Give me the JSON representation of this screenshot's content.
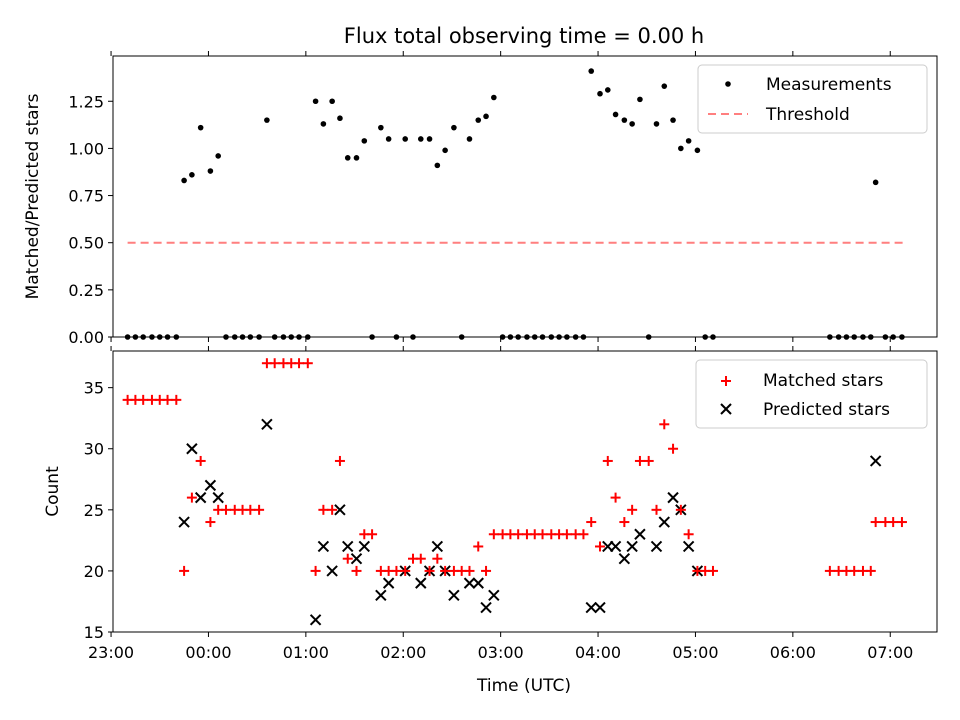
{
  "chart_data": {
    "title": "Flux total observing time = 0.00 h",
    "x_axis": {
      "label": "Time (UTC)",
      "range_hours": [
        -0.98,
        7.48
      ],
      "ticks": [
        {
          "value": -1,
          "label": "23:00"
        },
        {
          "value": 0,
          "label": "00:00"
        },
        {
          "value": 1,
          "label": "01:00"
        },
        {
          "value": 2,
          "label": "02:00"
        },
        {
          "value": 3,
          "label": "03:00"
        },
        {
          "value": 4,
          "label": "04:00"
        },
        {
          "value": 5,
          "label": "05:00"
        },
        {
          "value": 6,
          "label": "06:00"
        },
        {
          "value": 7,
          "label": "07:00"
        }
      ]
    },
    "panels": [
      {
        "type": "scatter",
        "ylabel": "Matched/Predicted stars",
        "ylim": [
          0,
          1.49
        ],
        "yticks": [
          {
            "value": 0,
            "label": "0.00"
          },
          {
            "value": 0.25,
            "label": "0.25"
          },
          {
            "value": 0.5,
            "label": "0.50"
          },
          {
            "value": 0.75,
            "label": "0.75"
          },
          {
            "value": 1.0,
            "label": "1.00"
          },
          {
            "value": 1.25,
            "label": "1.25"
          }
        ],
        "legend_position": "top-right",
        "legend": [
          {
            "label": "Measurements",
            "marker": "dot",
            "color": "#000000"
          },
          {
            "label": "Threshold",
            "marker": "dashed-line",
            "color": "#ff7f7f"
          }
        ],
        "threshold": {
          "value": 0.5,
          "x": [
            -0.83,
            7.13
          ],
          "color": "#ff7f7f"
        },
        "measurements": [
          [
            -0.83,
            0
          ],
          [
            -0.75,
            0
          ],
          [
            -0.67,
            0
          ],
          [
            -0.58,
            0
          ],
          [
            -0.5,
            0
          ],
          [
            -0.42,
            0
          ],
          [
            -0.33,
            0
          ],
          [
            -0.25,
            0.83
          ],
          [
            -0.17,
            0.86
          ],
          [
            -0.08,
            1.11
          ],
          [
            0.02,
            0.88
          ],
          [
            0.1,
            0.96
          ],
          [
            0.18,
            0
          ],
          [
            0.27,
            0
          ],
          [
            0.35,
            0
          ],
          [
            0.43,
            0
          ],
          [
            0.52,
            0
          ],
          [
            0.6,
            1.15
          ],
          [
            0.68,
            0
          ],
          [
            0.77,
            0
          ],
          [
            0.85,
            0
          ],
          [
            0.93,
            0
          ],
          [
            1.02,
            0
          ],
          [
            1.1,
            1.25
          ],
          [
            1.18,
            1.13
          ],
          [
            1.27,
            1.25
          ],
          [
            1.35,
            1.16
          ],
          [
            1.43,
            0.95
          ],
          [
            1.52,
            0.95
          ],
          [
            1.6,
            1.04
          ],
          [
            1.68,
            0
          ],
          [
            1.77,
            1.11
          ],
          [
            1.85,
            1.05
          ],
          [
            1.93,
            0
          ],
          [
            2.02,
            1.05
          ],
          [
            2.1,
            0
          ],
          [
            2.18,
            1.05
          ],
          [
            2.27,
            1.05
          ],
          [
            2.35,
            0.91
          ],
          [
            2.43,
            0.99
          ],
          [
            2.52,
            1.11
          ],
          [
            2.6,
            0
          ],
          [
            2.68,
            1.05
          ],
          [
            2.77,
            1.15
          ],
          [
            2.85,
            1.17
          ],
          [
            2.93,
            1.27
          ],
          [
            3.02,
            0
          ],
          [
            3.1,
            0
          ],
          [
            3.18,
            0
          ],
          [
            3.27,
            0
          ],
          [
            3.35,
            0
          ],
          [
            3.43,
            0
          ],
          [
            3.52,
            0
          ],
          [
            3.6,
            0
          ],
          [
            3.68,
            0
          ],
          [
            3.77,
            0
          ],
          [
            3.85,
            0
          ],
          [
            3.93,
            1.41
          ],
          [
            4.02,
            1.29
          ],
          [
            4.1,
            1.31
          ],
          [
            4.18,
            1.18
          ],
          [
            4.27,
            1.15
          ],
          [
            4.35,
            1.13
          ],
          [
            4.43,
            1.26
          ],
          [
            4.52,
            0
          ],
          [
            4.6,
            1.13
          ],
          [
            4.68,
            1.33
          ],
          [
            4.77,
            1.15
          ],
          [
            4.85,
            1.0
          ],
          [
            4.93,
            1.04
          ],
          [
            5.02,
            0.99
          ],
          [
            5.1,
            0
          ],
          [
            5.18,
            0
          ],
          [
            6.38,
            0
          ],
          [
            6.47,
            0
          ],
          [
            6.55,
            0
          ],
          [
            6.63,
            0
          ],
          [
            6.72,
            0
          ],
          [
            6.8,
            0
          ],
          [
            6.85,
            0.82
          ],
          [
            6.95,
            0
          ],
          [
            7.03,
            0
          ],
          [
            7.12,
            0
          ]
        ]
      },
      {
        "type": "scatter",
        "ylabel": "Count",
        "ylim": [
          15,
          38
        ],
        "yticks": [
          {
            "value": 15,
            "label": "15"
          },
          {
            "value": 20,
            "label": "20"
          },
          {
            "value": 25,
            "label": "25"
          },
          {
            "value": 30,
            "label": "30"
          },
          {
            "value": 35,
            "label": "35"
          }
        ],
        "legend_position": "top-right",
        "legend": [
          {
            "label": "Matched stars",
            "marker": "plus",
            "color": "#ff0000"
          },
          {
            "label": "Predicted stars",
            "marker": "x",
            "color": "#000000"
          }
        ],
        "matched": [
          [
            -0.83,
            34
          ],
          [
            -0.75,
            34
          ],
          [
            -0.67,
            34
          ],
          [
            -0.58,
            34
          ],
          [
            -0.5,
            34
          ],
          [
            -0.42,
            34
          ],
          [
            -0.33,
            34
          ],
          [
            -0.25,
            20
          ],
          [
            -0.17,
            26
          ],
          [
            -0.08,
            29
          ],
          [
            0.02,
            24
          ],
          [
            0.1,
            25
          ],
          [
            0.18,
            25
          ],
          [
            0.27,
            25
          ],
          [
            0.35,
            25
          ],
          [
            0.43,
            25
          ],
          [
            0.52,
            25
          ],
          [
            0.6,
            37
          ],
          [
            0.68,
            37
          ],
          [
            0.77,
            37
          ],
          [
            0.85,
            37
          ],
          [
            0.93,
            37
          ],
          [
            1.02,
            37
          ],
          [
            1.1,
            20
          ],
          [
            1.18,
            25
          ],
          [
            1.27,
            25
          ],
          [
            1.35,
            29
          ],
          [
            1.43,
            21
          ],
          [
            1.52,
            20
          ],
          [
            1.6,
            23
          ],
          [
            1.68,
            23
          ],
          [
            1.77,
            20
          ],
          [
            1.85,
            20
          ],
          [
            1.93,
            20
          ],
          [
            2.02,
            20
          ],
          [
            2.1,
            21
          ],
          [
            2.18,
            21
          ],
          [
            2.27,
            20
          ],
          [
            2.35,
            21
          ],
          [
            2.43,
            20
          ],
          [
            2.52,
            20
          ],
          [
            2.6,
            20
          ],
          [
            2.68,
            20
          ],
          [
            2.77,
            22
          ],
          [
            2.85,
            20
          ],
          [
            2.93,
            23
          ],
          [
            3.02,
            23
          ],
          [
            3.1,
            23
          ],
          [
            3.18,
            23
          ],
          [
            3.27,
            23
          ],
          [
            3.35,
            23
          ],
          [
            3.43,
            23
          ],
          [
            3.52,
            23
          ],
          [
            3.6,
            23
          ],
          [
            3.68,
            23
          ],
          [
            3.77,
            23
          ],
          [
            3.85,
            23
          ],
          [
            3.93,
            24
          ],
          [
            4.02,
            22
          ],
          [
            4.1,
            29
          ],
          [
            4.18,
            26
          ],
          [
            4.27,
            24
          ],
          [
            4.35,
            25
          ],
          [
            4.43,
            29
          ],
          [
            4.52,
            29
          ],
          [
            4.6,
            25
          ],
          [
            4.68,
            32
          ],
          [
            4.77,
            30
          ],
          [
            4.85,
            25
          ],
          [
            4.93,
            23
          ],
          [
            5.02,
            20
          ],
          [
            5.1,
            20
          ],
          [
            5.18,
            20
          ],
          [
            6.38,
            20
          ],
          [
            6.47,
            20
          ],
          [
            6.55,
            20
          ],
          [
            6.63,
            20
          ],
          [
            6.72,
            20
          ],
          [
            6.8,
            20
          ],
          [
            6.85,
            24
          ],
          [
            6.95,
            24
          ],
          [
            7.03,
            24
          ],
          [
            7.12,
            24
          ]
        ],
        "predicted": [
          [
            -0.25,
            24
          ],
          [
            -0.17,
            30
          ],
          [
            -0.08,
            26
          ],
          [
            0.02,
            27
          ],
          [
            0.1,
            26
          ],
          [
            0.6,
            32
          ],
          [
            1.1,
            16
          ],
          [
            1.18,
            22
          ],
          [
            1.27,
            20
          ],
          [
            1.35,
            25
          ],
          [
            1.43,
            22
          ],
          [
            1.52,
            21
          ],
          [
            1.6,
            22
          ],
          [
            1.77,
            18
          ],
          [
            1.85,
            19
          ],
          [
            2.02,
            20
          ],
          [
            2.18,
            19
          ],
          [
            2.27,
            20
          ],
          [
            2.35,
            22
          ],
          [
            2.43,
            20
          ],
          [
            2.52,
            18
          ],
          [
            2.68,
            19
          ],
          [
            2.77,
            19
          ],
          [
            2.85,
            17
          ],
          [
            2.93,
            18
          ],
          [
            3.93,
            17
          ],
          [
            4.02,
            17
          ],
          [
            4.1,
            22
          ],
          [
            4.18,
            22
          ],
          [
            4.27,
            21
          ],
          [
            4.35,
            22
          ],
          [
            4.43,
            23
          ],
          [
            4.6,
            22
          ],
          [
            4.68,
            24
          ],
          [
            4.77,
            26
          ],
          [
            4.85,
            25
          ],
          [
            4.93,
            22
          ],
          [
            5.02,
            20
          ],
          [
            6.85,
            29
          ]
        ]
      }
    ]
  }
}
